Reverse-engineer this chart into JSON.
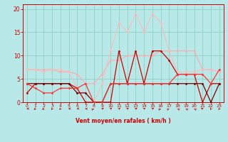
{
  "background_color": "#b8e8e8",
  "grid_color": "#88ccbb",
  "xlim": [
    -0.5,
    23.5
  ],
  "ylim": [
    0,
    21
  ],
  "yticks": [
    0,
    5,
    10,
    15,
    20
  ],
  "xticks": [
    0,
    1,
    2,
    3,
    4,
    5,
    6,
    7,
    8,
    9,
    10,
    11,
    12,
    13,
    14,
    15,
    16,
    17,
    18,
    19,
    20,
    21,
    22,
    23
  ],
  "xlabel": "Vent moyen/en rafales ( km/h )",
  "xlabel_color": "#cc0000",
  "xtick_color": "#cc0000",
  "ytick_color": "#cc0000",
  "axis_color": "#cc0000",
  "series": [
    {
      "x": [
        0,
        1,
        2,
        3,
        4,
        5,
        6,
        7,
        8,
        9,
        10,
        11,
        12,
        13,
        14,
        15,
        16,
        17,
        18,
        19,
        20,
        21,
        22,
        23
      ],
      "y": [
        7,
        7,
        7,
        7,
        6.5,
        6.5,
        6,
        4,
        4,
        6,
        9,
        9,
        10,
        10,
        10,
        10,
        11,
        11,
        11,
        11,
        11,
        7,
        7,
        6.5
      ],
      "color": "#ffaaaa",
      "lw": 0.8,
      "marker": "D",
      "ms": 1.5
    },
    {
      "x": [
        0,
        1,
        2,
        3,
        4,
        5,
        6,
        7,
        8,
        9,
        10,
        11,
        12,
        13,
        14,
        15,
        16,
        17,
        18,
        19,
        20,
        21,
        22,
        23
      ],
      "y": [
        7,
        7,
        6.5,
        7,
        7,
        6.5,
        3,
        2,
        0,
        4,
        11,
        17,
        15,
        19,
        15,
        19,
        17,
        11,
        6.5,
        6.5,
        6.5,
        7,
        7,
        6.5
      ],
      "color": "#ffbbbb",
      "lw": 0.8,
      "marker": "*",
      "ms": 2.5
    },
    {
      "x": [
        0,
        1,
        2,
        3,
        4,
        5,
        6,
        7,
        8,
        9,
        10,
        11,
        12,
        13,
        14,
        15,
        16,
        17,
        18,
        19,
        20,
        21,
        22,
        23
      ],
      "y": [
        2,
        4,
        4,
        4,
        4,
        4,
        3,
        0,
        0,
        0,
        0,
        11,
        4,
        11,
        4,
        11,
        11,
        9,
        6,
        6,
        6,
        0,
        4,
        4
      ],
      "color": "#cc0000",
      "lw": 0.9,
      "marker": "D",
      "ms": 1.5
    },
    {
      "x": [
        0,
        1,
        2,
        3,
        4,
        5,
        6,
        7,
        8,
        9,
        10,
        11,
        12,
        13,
        14,
        15,
        16,
        17,
        18,
        19,
        20,
        21,
        22,
        23
      ],
      "y": [
        4,
        4,
        4,
        4,
        4,
        4,
        2,
        2,
        0,
        0,
        4,
        4,
        4,
        4,
        4,
        4,
        4,
        4,
        4,
        4,
        4,
        4,
        0,
        4
      ],
      "color": "#770000",
      "lw": 0.9,
      "marker": "D",
      "ms": 1.5
    },
    {
      "x": [
        0,
        1,
        2,
        3,
        4,
        5,
        6,
        7,
        8,
        9,
        10,
        11,
        12,
        13,
        14,
        15,
        16,
        17,
        18,
        19,
        20,
        21,
        22,
        23
      ],
      "y": [
        4,
        3,
        2,
        2,
        3,
        3,
        3,
        4,
        0,
        0,
        4,
        4,
        4,
        4,
        4,
        4,
        4,
        4,
        6,
        6,
        6,
        6,
        4,
        7
      ],
      "color": "#ff3333",
      "lw": 0.9,
      "marker": "D",
      "ms": 1.5
    }
  ],
  "arrows": {
    "angles_deg": [
      260,
      225,
      225,
      200,
      210,
      260,
      260,
      270,
      50,
      45,
      40,
      40,
      40,
      45,
      40,
      45,
      50,
      50,
      310,
      310,
      310,
      315,
      200,
      200
    ],
    "color": "#cc0000",
    "size": 0.28
  }
}
